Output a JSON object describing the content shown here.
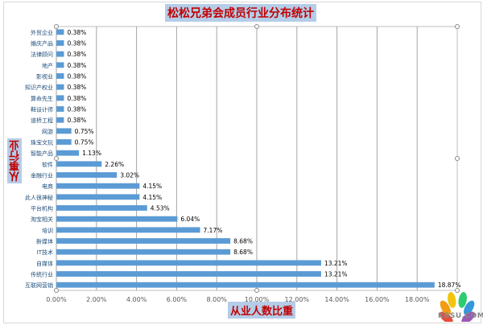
{
  "chart_data": {
    "type": "bar",
    "orientation": "horizontal",
    "title": "松松兄弟会成员行业分布统计",
    "xlabel": "从业人数比重",
    "ylabel": "从事行业",
    "xlim": [
      0,
      20
    ],
    "xticks": [
      "0.00%",
      "2.00%",
      "4.00%",
      "6.00%",
      "8.00%",
      "10.00%",
      "12.00%",
      "14.00%",
      "16.00%",
      "18.00%"
    ],
    "grid": true,
    "categories": [
      "外贸企业",
      "婚庆产品",
      "法律顾问",
      "地产",
      "影视业",
      "知识产权业",
      "算命先生",
      "鞋设计师",
      "道桥工程",
      "网游",
      "珠宝文玩",
      "智能产品",
      "软件",
      "金融行业",
      "电商",
      "此人很神秘",
      "平台机构",
      "淘宝相关",
      "培训",
      "新媒体",
      "IT技术",
      "自媒体",
      "传统行业",
      "互联网营销"
    ],
    "values": [
      0.38,
      0.38,
      0.38,
      0.38,
      0.38,
      0.38,
      0.38,
      0.38,
      0.38,
      0.75,
      0.75,
      1.13,
      2.26,
      3.02,
      4.15,
      4.15,
      4.53,
      6.04,
      7.17,
      8.68,
      8.68,
      13.21,
      13.21,
      18.87
    ],
    "labels": [
      "0.38%",
      "0.38%",
      "0.38%",
      "0.38%",
      "0.38%",
      "0.38%",
      "0.38%",
      "0.38%",
      "0.38%",
      "0.75%",
      "0.75%",
      "1.13%",
      "2.26%",
      "3.02%",
      "4.15%",
      "4.15%",
      "4.53%",
      "6.04%",
      "7.17%",
      "8.68%",
      "8.68%",
      "13.21%",
      "13.21%",
      "18.87%"
    ],
    "bar_color": "#5b9bd5"
  },
  "watermark": "KBSU.COM"
}
